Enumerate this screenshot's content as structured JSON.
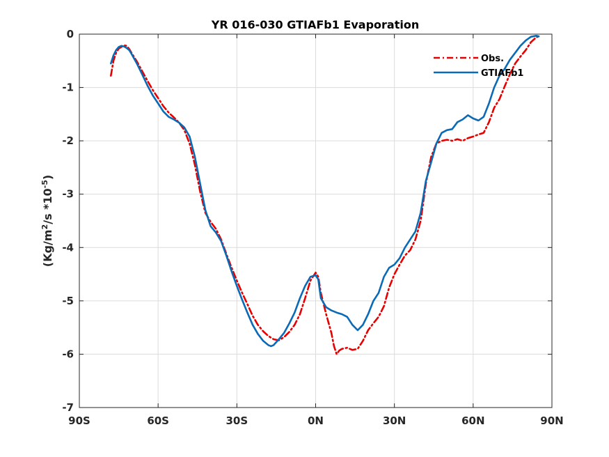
{
  "chart_data": {
    "type": "line",
    "title": "YR 016-030 GTIAFb1 Evaporation",
    "xlabel": "",
    "ylabel": "(Kg/m²/s *10⁻⁵)",
    "xlim": [
      -90,
      90
    ],
    "ylim": [
      -7,
      0
    ],
    "grid": true,
    "legend_position": "top-right",
    "x_ticks": [
      -90,
      -60,
      -30,
      0,
      30,
      60,
      90
    ],
    "x_tick_labels": [
      "90S",
      "60S",
      "30S",
      "0N",
      "30N",
      "60N",
      "90N"
    ],
    "y_ticks": [
      0,
      -1,
      -2,
      -3,
      -4,
      -5,
      -6,
      -7
    ],
    "y_tick_labels": [
      "0",
      "-1",
      "-2",
      "-3",
      "-4",
      "-5",
      "-6",
      "-7"
    ],
    "series": [
      {
        "name": "Obs.",
        "color": "#e60000",
        "dash": "dashdot",
        "points": [
          [
            -78,
            -0.78
          ],
          [
            -77,
            -0.5
          ],
          [
            -76,
            -0.35
          ],
          [
            -75,
            -0.27
          ],
          [
            -74,
            -0.24
          ],
          [
            -73,
            -0.21
          ],
          [
            -72,
            -0.22
          ],
          [
            -71,
            -0.28
          ],
          [
            -70,
            -0.36
          ],
          [
            -68,
            -0.52
          ],
          [
            -66,
            -0.7
          ],
          [
            -64,
            -0.88
          ],
          [
            -62,
            -1.05
          ],
          [
            -60,
            -1.2
          ],
          [
            -58,
            -1.35
          ],
          [
            -56,
            -1.47
          ],
          [
            -54,
            -1.56
          ],
          [
            -52,
            -1.66
          ],
          [
            -50,
            -1.8
          ],
          [
            -48,
            -2.05
          ],
          [
            -46,
            -2.45
          ],
          [
            -44,
            -2.95
          ],
          [
            -42,
            -3.35
          ],
          [
            -40,
            -3.52
          ],
          [
            -38,
            -3.65
          ],
          [
            -36,
            -3.85
          ],
          [
            -34,
            -4.12
          ],
          [
            -32,
            -4.38
          ],
          [
            -30,
            -4.62
          ],
          [
            -28,
            -4.85
          ],
          [
            -26,
            -5.06
          ],
          [
            -24,
            -5.28
          ],
          [
            -22,
            -5.45
          ],
          [
            -20,
            -5.57
          ],
          [
            -18,
            -5.66
          ],
          [
            -16,
            -5.72
          ],
          [
            -14,
            -5.74
          ],
          [
            -12,
            -5.68
          ],
          [
            -10,
            -5.58
          ],
          [
            -8,
            -5.45
          ],
          [
            -6,
            -5.25
          ],
          [
            -4,
            -4.95
          ],
          [
            -2,
            -4.62
          ],
          [
            0,
            -4.47
          ],
          [
            1,
            -4.55
          ],
          [
            2,
            -4.85
          ],
          [
            4,
            -5.25
          ],
          [
            6,
            -5.6
          ],
          [
            7,
            -5.85
          ],
          [
            8,
            -6.0
          ],
          [
            9,
            -5.93
          ],
          [
            10,
            -5.9
          ],
          [
            12,
            -5.88
          ],
          [
            14,
            -5.92
          ],
          [
            16,
            -5.9
          ],
          [
            18,
            -5.75
          ],
          [
            20,
            -5.55
          ],
          [
            22,
            -5.42
          ],
          [
            24,
            -5.3
          ],
          [
            26,
            -5.1
          ],
          [
            28,
            -4.75
          ],
          [
            30,
            -4.5
          ],
          [
            32,
            -4.32
          ],
          [
            34,
            -4.15
          ],
          [
            36,
            -4.05
          ],
          [
            38,
            -3.85
          ],
          [
            40,
            -3.5
          ],
          [
            42,
            -2.8
          ],
          [
            44,
            -2.3
          ],
          [
            46,
            -2.05
          ],
          [
            48,
            -2.0
          ],
          [
            50,
            -1.98
          ],
          [
            52,
            -2.0
          ],
          [
            54,
            -1.97
          ],
          [
            56,
            -2.0
          ],
          [
            58,
            -1.95
          ],
          [
            60,
            -1.92
          ],
          [
            62,
            -1.88
          ],
          [
            64,
            -1.85
          ],
          [
            66,
            -1.65
          ],
          [
            68,
            -1.38
          ],
          [
            70,
            -1.22
          ],
          [
            72,
            -0.98
          ],
          [
            74,
            -0.75
          ],
          [
            76,
            -0.55
          ],
          [
            78,
            -0.42
          ],
          [
            80,
            -0.3
          ],
          [
            82,
            -0.15
          ],
          [
            84,
            -0.06
          ],
          [
            85,
            -0.04
          ]
        ]
      },
      {
        "name": "GTIAFb1",
        "color": "#0a6ab5",
        "dash": "solid",
        "points": [
          [
            -78,
            -0.55
          ],
          [
            -77,
            -0.4
          ],
          [
            -76,
            -0.3
          ],
          [
            -75,
            -0.24
          ],
          [
            -74,
            -0.22
          ],
          [
            -73,
            -0.23
          ],
          [
            -72,
            -0.26
          ],
          [
            -71,
            -0.3
          ],
          [
            -70,
            -0.38
          ],
          [
            -68,
            -0.56
          ],
          [
            -66,
            -0.76
          ],
          [
            -64,
            -0.97
          ],
          [
            -62,
            -1.15
          ],
          [
            -60,
            -1.3
          ],
          [
            -58,
            -1.45
          ],
          [
            -56,
            -1.55
          ],
          [
            -54,
            -1.6
          ],
          [
            -52,
            -1.66
          ],
          [
            -50,
            -1.75
          ],
          [
            -48,
            -1.92
          ],
          [
            -46,
            -2.3
          ],
          [
            -44,
            -2.8
          ],
          [
            -42,
            -3.3
          ],
          [
            -40,
            -3.6
          ],
          [
            -38,
            -3.72
          ],
          [
            -36,
            -3.88
          ],
          [
            -34,
            -4.15
          ],
          [
            -32,
            -4.45
          ],
          [
            -30,
            -4.72
          ],
          [
            -28,
            -4.98
          ],
          [
            -26,
            -5.22
          ],
          [
            -24,
            -5.45
          ],
          [
            -22,
            -5.62
          ],
          [
            -20,
            -5.75
          ],
          [
            -18,
            -5.83
          ],
          [
            -17,
            -5.85
          ],
          [
            -16,
            -5.83
          ],
          [
            -14,
            -5.72
          ],
          [
            -12,
            -5.6
          ],
          [
            -10,
            -5.42
          ],
          [
            -8,
            -5.22
          ],
          [
            -6,
            -4.95
          ],
          [
            -4,
            -4.72
          ],
          [
            -2,
            -4.55
          ],
          [
            0,
            -4.52
          ],
          [
            1,
            -4.6
          ],
          [
            2,
            -4.95
          ],
          [
            4,
            -5.12
          ],
          [
            6,
            -5.18
          ],
          [
            8,
            -5.22
          ],
          [
            10,
            -5.25
          ],
          [
            12,
            -5.3
          ],
          [
            14,
            -5.45
          ],
          [
            16,
            -5.55
          ],
          [
            18,
            -5.45
          ],
          [
            20,
            -5.25
          ],
          [
            22,
            -5.0
          ],
          [
            24,
            -4.85
          ],
          [
            26,
            -4.55
          ],
          [
            28,
            -4.38
          ],
          [
            30,
            -4.32
          ],
          [
            32,
            -4.2
          ],
          [
            34,
            -4.0
          ],
          [
            36,
            -3.85
          ],
          [
            38,
            -3.7
          ],
          [
            40,
            -3.35
          ],
          [
            42,
            -2.75
          ],
          [
            44,
            -2.4
          ],
          [
            46,
            -2.05
          ],
          [
            48,
            -1.85
          ],
          [
            50,
            -1.8
          ],
          [
            52,
            -1.78
          ],
          [
            54,
            -1.65
          ],
          [
            56,
            -1.6
          ],
          [
            58,
            -1.52
          ],
          [
            60,
            -1.58
          ],
          [
            62,
            -1.62
          ],
          [
            64,
            -1.55
          ],
          [
            66,
            -1.3
          ],
          [
            68,
            -1.0
          ],
          [
            70,
            -0.78
          ],
          [
            72,
            -0.65
          ],
          [
            74,
            -0.48
          ],
          [
            76,
            -0.35
          ],
          [
            78,
            -0.22
          ],
          [
            80,
            -0.12
          ],
          [
            82,
            -0.05
          ],
          [
            84,
            -0.03
          ],
          [
            85,
            -0.04
          ]
        ]
      }
    ]
  }
}
